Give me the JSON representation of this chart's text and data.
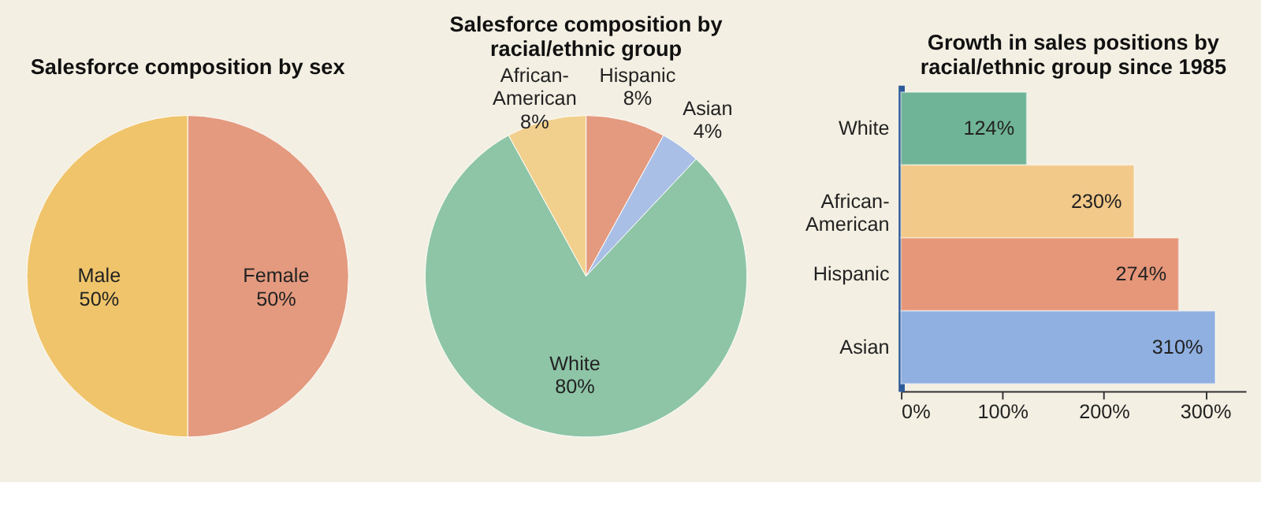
{
  "chart_data": [
    {
      "type": "pie",
      "title": "Salesforce composition by sex",
      "categories": [
        "Female",
        "Male"
      ],
      "values": [
        50,
        50
      ],
      "colors": [
        "#e39a7e",
        "#efc46a"
      ],
      "value_labels": [
        "50%",
        "50%"
      ]
    },
    {
      "type": "pie",
      "title": "Salesforce composition by racial/ethnic group",
      "categories": [
        "Hispanic",
        "Asian",
        "White",
        "African-American"
      ],
      "values": [
        8,
        4,
        80,
        8
      ],
      "colors": [
        "#e39a7e",
        "#a9bfe6",
        "#8ec5a6",
        "#f1cf8c"
      ],
      "value_labels": [
        "8%",
        "4%",
        "80%",
        "8%"
      ]
    },
    {
      "type": "bar",
      "orientation": "horizontal",
      "title": "Growth in sales positions by racial/ethnic group since 1985",
      "categories": [
        "White",
        "African-American",
        "Hispanic",
        "Asian"
      ],
      "values": [
        124,
        230,
        274,
        310
      ],
      "colors": [
        "#6fb496",
        "#f3c98a",
        "#e6977a",
        "#8fb0e0"
      ],
      "value_labels": [
        "124%",
        "230%",
        "274%",
        "310%"
      ],
      "xlim": [
        0,
        340
      ],
      "xticks": [
        {
          "value": 0,
          "label": "0%"
        },
        {
          "value": 100,
          "label": "100%"
        },
        {
          "value": 200,
          "label": "200%"
        },
        {
          "value": 300,
          "label": "300%"
        }
      ],
      "grid": false
    }
  ]
}
